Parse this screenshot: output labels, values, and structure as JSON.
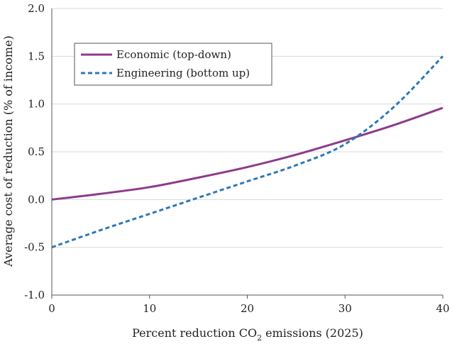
{
  "chart_data": {
    "type": "line",
    "title": "",
    "xlabel_main": "Percent reduction CO",
    "xlabel_sub": "2",
    "xlabel_tail": " emissions (2025)",
    "ylabel": "Average cost of reduction (% of income)",
    "xlim": [
      0,
      40
    ],
    "ylim": [
      -1.0,
      2.0
    ],
    "x_ticks": [
      0,
      10,
      20,
      30,
      40
    ],
    "x_tick_labels": [
      "0",
      "10",
      "20",
      "30",
      "40"
    ],
    "y_ticks": [
      -1.0,
      -0.5,
      0.0,
      0.5,
      1.0,
      1.5,
      2.0
    ],
    "y_tick_labels": [
      "-1.0",
      "-0.5",
      "0.0",
      "0.5",
      "1.0",
      "1.5",
      "2.0"
    ],
    "grid": "horizontal",
    "legend_position": "top-left",
    "series": [
      {
        "name": "Economic (top-down)",
        "color": "#8e3a8c",
        "style": "solid",
        "x": [
          0,
          5,
          10,
          15,
          20,
          25,
          30,
          35,
          40
        ],
        "y": [
          0.0,
          0.06,
          0.13,
          0.23,
          0.34,
          0.47,
          0.62,
          0.78,
          0.96
        ]
      },
      {
        "name": "Engineering (bottom up)",
        "color": "#2e78b7",
        "style": "dashed",
        "x": [
          0,
          5,
          10,
          15,
          20,
          25,
          30,
          35,
          40
        ],
        "y": [
          -0.5,
          -0.32,
          -0.15,
          0.02,
          0.19,
          0.36,
          0.58,
          0.97,
          1.5
        ]
      }
    ]
  }
}
